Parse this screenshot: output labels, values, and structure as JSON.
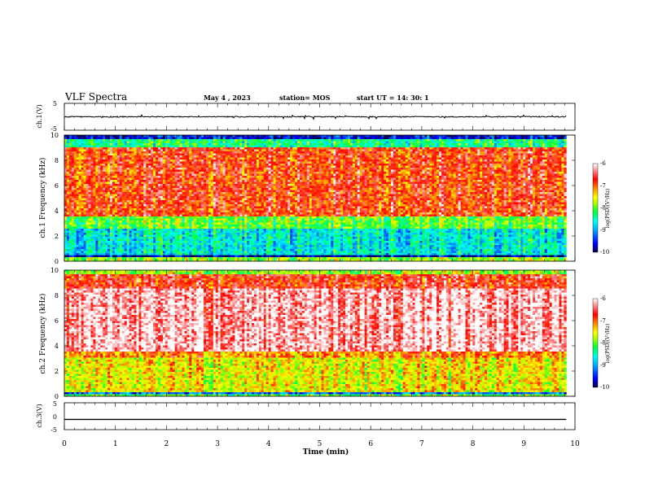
{
  "header": {
    "title": "VLF Spectra",
    "date": "May 4 , 2023",
    "station": "station= MOS",
    "start": "start  UT =   14: 30: 1"
  },
  "chart_data": [
    {
      "type": "line",
      "ylabel": "ch.1(V)",
      "ylim": [
        -5,
        5
      ],
      "ytick_labels": [
        "5",
        "-5"
      ],
      "series": [
        {
          "x": [
            0,
            9.83
          ],
          "y": [
            0,
            0
          ]
        }
      ]
    },
    {
      "type": "heatmap",
      "ylabel": "ch.1 Frequency (kHz)",
      "ylim": [
        0,
        10
      ],
      "ytick_labels": [
        "0",
        "2",
        "4",
        "6",
        "8",
        "10"
      ],
      "xlim": [
        0,
        10
      ],
      "colorbar": {
        "label": "log(PSD)(V²/Hz)",
        "range": [
          -10,
          -6
        ],
        "tick_labels": [
          "-6",
          "-7",
          "-8",
          "-9",
          "-10"
        ]
      }
    },
    {
      "type": "heatmap",
      "ylabel": "ch.2 Frequency (kHz)",
      "ylim": [
        0,
        10
      ],
      "ytick_labels": [
        "0",
        "2",
        "4",
        "6",
        "8",
        "10"
      ],
      "xlim": [
        0,
        10
      ],
      "colorbar": {
        "label": "log(PSD)(V²/Hz)",
        "range": [
          -10,
          -6
        ],
        "tick_labels": [
          "-6",
          "-7",
          "-8",
          "-9",
          "-10"
        ]
      }
    },
    {
      "type": "line",
      "ylabel": "ch.3(V)",
      "ylim": [
        -5,
        5
      ],
      "ytick_labels": [
        "5",
        "0",
        "-5"
      ],
      "series": [
        {
          "x": [
            0,
            9.83
          ],
          "y": [
            -1.2,
            -1.2
          ]
        }
      ]
    }
  ],
  "xaxis": {
    "label": "Time  (min)",
    "xlim": [
      0,
      10
    ],
    "tick_labels": [
      "0",
      "1",
      "2",
      "3",
      "4",
      "5",
      "6",
      "7",
      "8",
      "9",
      "10"
    ]
  },
  "colors": {
    "colormap": [
      "#000066",
      "#0000ff",
      "#00aaff",
      "#00ffff",
      "#00ff44",
      "#aaff00",
      "#ffff00",
      "#ff8800",
      "#ff0000",
      "#ffffff"
    ]
  }
}
